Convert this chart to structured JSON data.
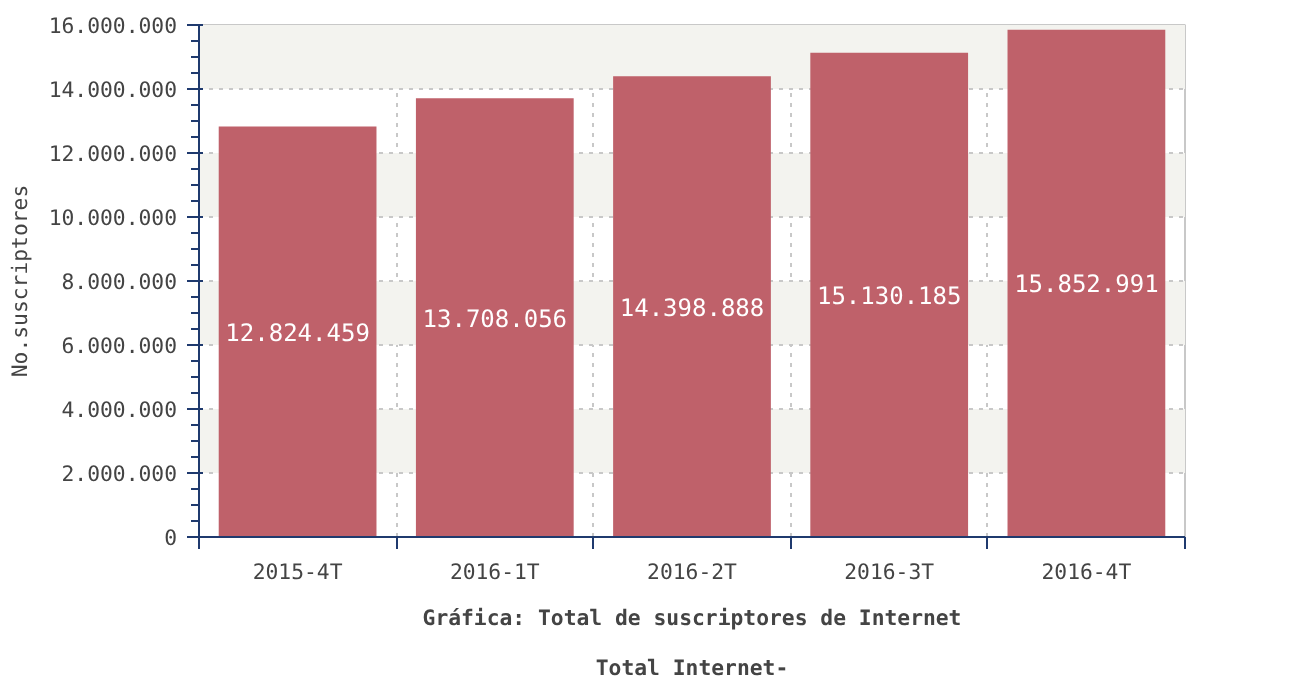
{
  "chart_data": {
    "type": "bar",
    "title": "Gráfica: Total de suscriptores de Internet",
    "subtitle": "Total Internet-",
    "ylabel": "No.suscriptores",
    "categories": [
      "2015-4T",
      "2016-1T",
      "2016-2T",
      "2016-3T",
      "2016-4T"
    ],
    "values": [
      12824459,
      13708056,
      14398888,
      15130185,
      15852991
    ],
    "value_labels": [
      "12.824.459",
      "13.708.056",
      "14.398.888",
      "15.130.185",
      "15.852.991"
    ],
    "color": "#bf616a",
    "grid": true,
    "ylim": [
      0,
      16000000
    ],
    "yticks": [
      {
        "value": 0,
        "label": "0"
      },
      {
        "value": 2000000,
        "label": "2.000.000"
      },
      {
        "value": 4000000,
        "label": "4.000.000"
      },
      {
        "value": 6000000,
        "label": "6.000.000"
      },
      {
        "value": 8000000,
        "label": "8.000.000"
      },
      {
        "value": 10000000,
        "label": "10.000.000"
      },
      {
        "value": 12000000,
        "label": "12.000.000"
      },
      {
        "value": 14000000,
        "label": "14.000.000"
      },
      {
        "value": 16000000,
        "label": "16.000.000"
      }
    ]
  }
}
